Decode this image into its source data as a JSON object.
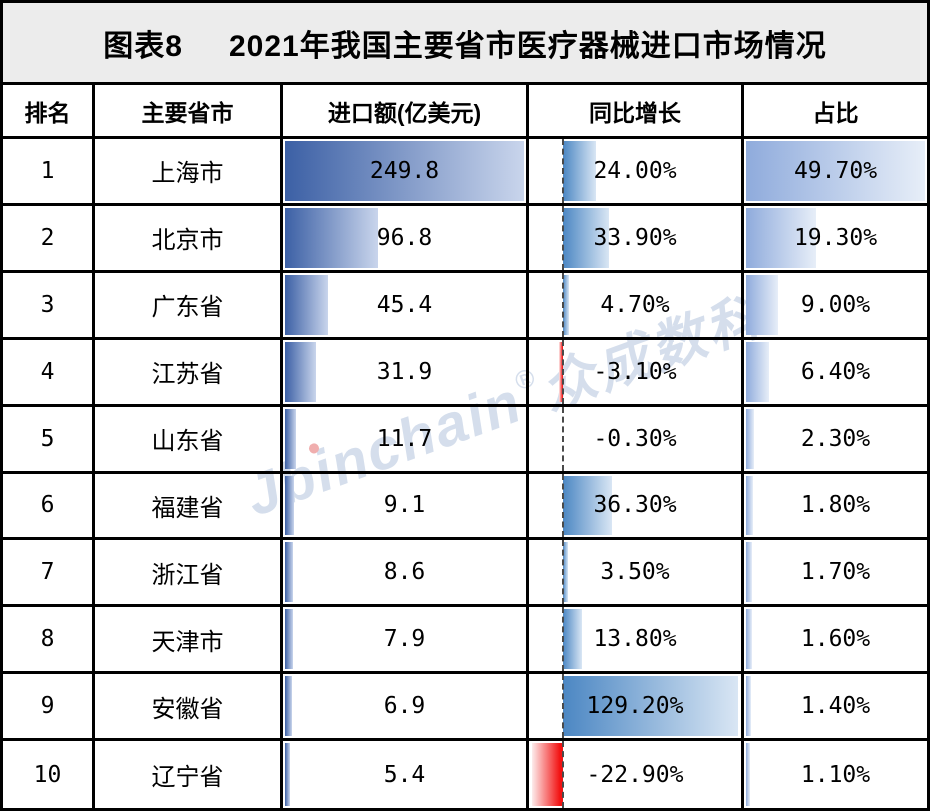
{
  "title": {
    "tag": "图表8",
    "text": "2021年我国主要省市医疗器械进口市场情况"
  },
  "watermark": {
    "brand": "Jbinchain",
    "reg": "®",
    "cn": "众成数科"
  },
  "colors": {
    "border": "#000000",
    "title_bg": "#ececec",
    "import_bar_dark": "#3c60a5",
    "import_bar_light": "#c9d5ec",
    "yoy_bar_blue": "#4c87c3",
    "yoy_bar_blue_light": "#d9e6f4",
    "yoy_bar_red": "#f21212",
    "yoy_bar_red_light": "#fdecec",
    "share_bar_blue": "#8fabdc",
    "share_bar_blue_light": "#e7eef8",
    "watermark_blue": "#c7d4e6",
    "watermark_dot_red": "#ec9393"
  },
  "chart_data": {
    "type": "table",
    "title": "图表8 2021年我国主要省市医疗器械进口市场情况",
    "columns": [
      "排名",
      "主要省市",
      "进口额(亿美元)",
      "同比增长",
      "占比"
    ],
    "rows": [
      {
        "rank": "1",
        "region": "上海市",
        "import_usd_100m": 249.8,
        "yoy_pct": 24.0,
        "share_pct": 49.7
      },
      {
        "rank": "2",
        "region": "北京市",
        "import_usd_100m": 96.8,
        "yoy_pct": 33.9,
        "share_pct": 19.3
      },
      {
        "rank": "3",
        "region": "广东省",
        "import_usd_100m": 45.4,
        "yoy_pct": 4.7,
        "share_pct": 9.0
      },
      {
        "rank": "4",
        "region": "江苏省",
        "import_usd_100m": 31.9,
        "yoy_pct": -3.1,
        "share_pct": 6.4
      },
      {
        "rank": "5",
        "region": "山东省",
        "import_usd_100m": 11.7,
        "yoy_pct": -0.3,
        "share_pct": 2.3
      },
      {
        "rank": "6",
        "region": "福建省",
        "import_usd_100m": 9.1,
        "yoy_pct": 36.3,
        "share_pct": 1.8
      },
      {
        "rank": "7",
        "region": "浙江省",
        "import_usd_100m": 8.6,
        "yoy_pct": 3.5,
        "share_pct": 1.7
      },
      {
        "rank": "8",
        "region": "天津市",
        "import_usd_100m": 7.9,
        "yoy_pct": 13.8,
        "share_pct": 1.6
      },
      {
        "rank": "9",
        "region": "安徽省",
        "import_usd_100m": 6.9,
        "yoy_pct": 129.2,
        "share_pct": 1.4
      },
      {
        "rank": "10",
        "region": "辽宁省",
        "import_usd_100m": 5.4,
        "yoy_pct": -22.9,
        "share_pct": 1.1
      }
    ],
    "databar_axes": {
      "import_min": 0,
      "import_max": 249.8,
      "yoy_min": -22.9,
      "yoy_max": 129.2,
      "share_min": 0,
      "share_max": 49.7
    },
    "layout": {
      "grid": "black 3px borders",
      "databars": "gradient fill, zero axis dashed in yoy column",
      "legend": "none"
    }
  }
}
